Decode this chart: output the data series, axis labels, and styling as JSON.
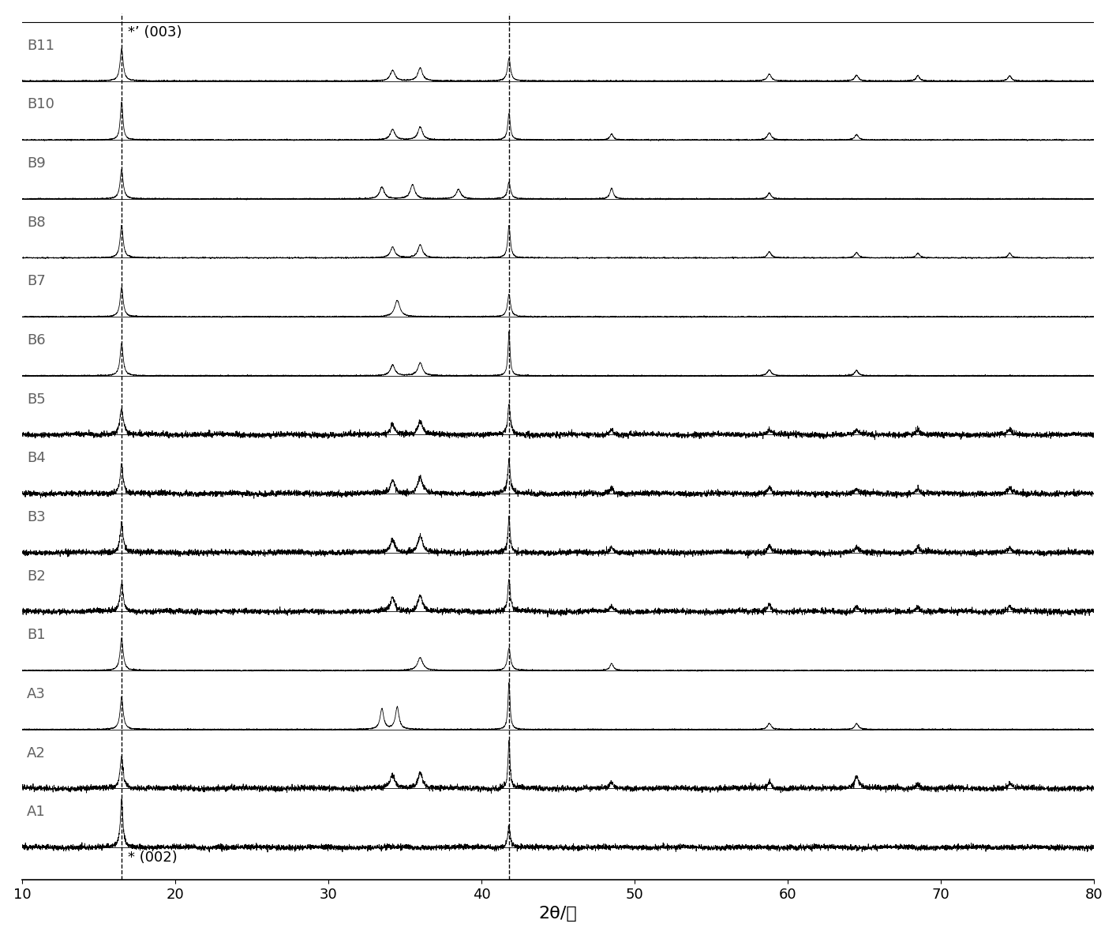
{
  "xlabel": "2θ/度",
  "xlim": [
    10,
    80
  ],
  "xticks": [
    10,
    20,
    30,
    40,
    50,
    60,
    70,
    80
  ],
  "dashed_lines": [
    16.5,
    41.8
  ],
  "annotation_top": "*’ (003)",
  "annotation_bottom": "* (002)",
  "labels": [
    "B11",
    "B10",
    "B9",
    "B8",
    "B7",
    "B6",
    "B5",
    "B4",
    "B3",
    "B2",
    "B1",
    "A3",
    "A2",
    "A1"
  ],
  "background_color": "#ffffff",
  "line_color": "#000000",
  "label_color": "#606060",
  "label_fontsize": 13,
  "xlabel_fontsize": 16,
  "annotation_fontsize": 13,
  "figsize": [
    14.14,
    11.84
  ],
  "dpi": 100,
  "noisy_traces": [
    "B5",
    "B4",
    "B3",
    "B2",
    "A2",
    "A1"
  ],
  "peak_positions": {
    "B11": [
      16.5,
      34.2,
      36.0,
      41.8,
      58.8,
      64.5,
      68.5,
      74.5
    ],
    "B10": [
      16.5,
      34.2,
      36.0,
      41.8,
      48.5,
      58.8,
      64.5
    ],
    "B9": [
      16.5,
      33.5,
      35.5,
      38.5,
      41.8,
      48.5,
      58.8
    ],
    "B8": [
      16.5,
      34.2,
      36.0,
      41.8,
      58.8,
      64.5,
      68.5,
      74.5
    ],
    "B7": [
      16.5,
      34.5,
      41.8
    ],
    "B6": [
      16.5,
      34.2,
      36.0,
      41.8,
      58.8,
      64.5
    ],
    "B5": [
      16.5,
      34.2,
      36.0,
      41.8,
      48.5,
      58.8,
      64.5,
      68.5,
      74.5
    ],
    "B4": [
      16.5,
      34.2,
      36.0,
      41.8,
      48.5,
      58.8,
      64.5,
      68.5,
      74.5
    ],
    "B3": [
      16.5,
      34.2,
      36.0,
      41.8,
      48.5,
      58.8,
      64.5,
      68.5,
      74.5
    ],
    "B2": [
      16.5,
      34.2,
      36.0,
      41.8,
      48.5,
      58.8,
      64.5,
      68.5,
      74.5
    ],
    "B1": [
      16.5,
      36.0,
      41.8,
      48.5
    ],
    "A3": [
      16.5,
      33.5,
      34.5,
      41.8,
      58.8,
      64.5
    ],
    "A2": [
      16.5,
      34.2,
      36.0,
      41.8,
      48.5,
      58.8,
      64.5,
      68.5,
      74.5
    ],
    "A1": [
      16.5,
      41.8
    ]
  },
  "peak_heights": {
    "B11": [
      0.55,
      0.18,
      0.22,
      0.38,
      0.12,
      0.1,
      0.09,
      0.09
    ],
    "B10": [
      0.65,
      0.18,
      0.22,
      0.45,
      0.1,
      0.12,
      0.09
    ],
    "B9": [
      0.5,
      0.2,
      0.24,
      0.16,
      0.28,
      0.18,
      0.1
    ],
    "B8": [
      0.55,
      0.18,
      0.22,
      0.55,
      0.1,
      0.09,
      0.08,
      0.08
    ],
    "B7": [
      0.5,
      0.28,
      0.38
    ],
    "B6": [
      0.55,
      0.18,
      0.22,
      0.75,
      0.1,
      0.09
    ],
    "B5": [
      0.45,
      0.18,
      0.22,
      0.5,
      0.1,
      0.09,
      0.08,
      0.08,
      0.08
    ],
    "B4": [
      0.5,
      0.22,
      0.28,
      0.55,
      0.1,
      0.12,
      0.09,
      0.09,
      0.09
    ],
    "B3": [
      0.5,
      0.22,
      0.28,
      0.6,
      0.1,
      0.12,
      0.09,
      0.09,
      0.09
    ],
    "B2": [
      0.5,
      0.22,
      0.28,
      0.55,
      0.1,
      0.12,
      0.09,
      0.09,
      0.09
    ],
    "B1": [
      0.55,
      0.22,
      0.38,
      0.12
    ],
    "A3": [
      0.55,
      0.35,
      0.38,
      0.8,
      0.1,
      0.1
    ],
    "A2": [
      0.55,
      0.22,
      0.28,
      0.8,
      0.1,
      0.12,
      0.2,
      0.09,
      0.09
    ],
    "A1": [
      0.8,
      0.35
    ]
  },
  "peak_widths": {
    "B11": [
      0.12,
      0.18,
      0.18,
      0.12,
      0.15,
      0.14,
      0.13,
      0.13
    ],
    "B10": [
      0.1,
      0.18,
      0.18,
      0.1,
      0.13,
      0.15,
      0.14
    ],
    "B9": [
      0.12,
      0.18,
      0.18,
      0.18,
      0.12,
      0.13,
      0.14
    ],
    "B8": [
      0.12,
      0.18,
      0.18,
      0.1,
      0.15,
      0.14,
      0.13,
      0.13
    ],
    "B7": [
      0.12,
      0.2,
      0.12
    ],
    "B6": [
      0.12,
      0.18,
      0.18,
      0.08,
      0.15,
      0.14
    ],
    "B5": [
      0.14,
      0.18,
      0.18,
      0.1,
      0.13,
      0.15,
      0.14,
      0.13,
      0.13
    ],
    "B4": [
      0.12,
      0.18,
      0.18,
      0.1,
      0.13,
      0.15,
      0.14,
      0.13,
      0.13
    ],
    "B3": [
      0.12,
      0.18,
      0.18,
      0.08,
      0.13,
      0.15,
      0.14,
      0.13,
      0.13
    ],
    "B2": [
      0.12,
      0.18,
      0.18,
      0.1,
      0.13,
      0.15,
      0.14,
      0.13,
      0.13
    ],
    "B1": [
      0.12,
      0.2,
      0.12,
      0.13
    ],
    "A3": [
      0.12,
      0.14,
      0.14,
      0.08,
      0.15,
      0.14
    ],
    "A2": [
      0.12,
      0.18,
      0.18,
      0.08,
      0.13,
      0.15,
      0.18,
      0.13,
      0.13
    ],
    "A1": [
      0.1,
      0.1
    ]
  }
}
